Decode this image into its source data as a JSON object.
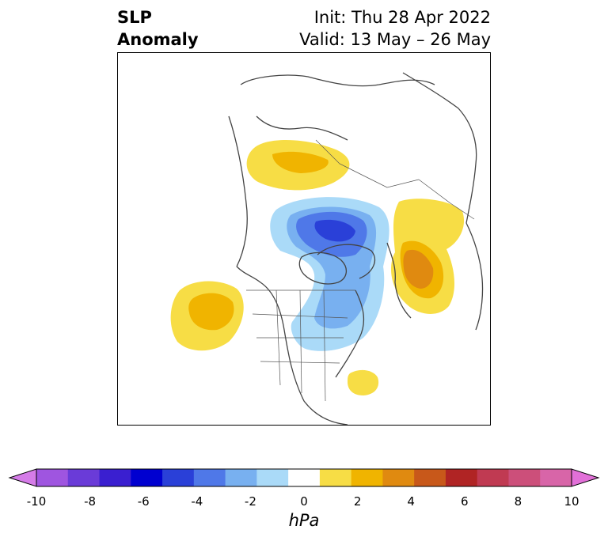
{
  "title": {
    "left_line1": "SLP",
    "left_line2": "Anomaly",
    "init": "Init: Thu 28 Apr 2022",
    "valid": "Valid: 13 May – 26 May"
  },
  "colorbar": {
    "unit": "hPa",
    "levels": [
      -10,
      -9,
      -8,
      -7,
      -6,
      -5,
      -4,
      -3,
      -2,
      -1,
      1,
      2,
      3,
      4,
      5,
      6,
      7,
      8,
      9,
      10
    ],
    "colors": [
      "#d57ce8",
      "#9f55e0",
      "#6a3bd8",
      "#3a1fd0",
      "#0000d0",
      "#2a40d8",
      "#4f78e8",
      "#78b0f0",
      "#aadaf8",
      "#ffffff",
      "#f7dd45",
      "#f0b400",
      "#e08a10",
      "#c8581a",
      "#b02424",
      "#c03a52",
      "#cc4f7a",
      "#d865a8",
      "#e270d8"
    ],
    "tick_labels": [
      "-10",
      "-8",
      "-6",
      "-4",
      "-2",
      "0",
      "2",
      "4",
      "6",
      "8",
      "10"
    ]
  },
  "map": {
    "projection": "north-polar-stereographic",
    "anomalies": [
      {
        "name": "negative-anomaly-arctic",
        "sign": "negative",
        "peak": -5
      },
      {
        "name": "positive-anomaly-siberia",
        "sign": "positive",
        "peak": 3
      },
      {
        "name": "positive-anomaly-europe",
        "sign": "positive",
        "peak": 4
      },
      {
        "name": "positive-anomaly-north-pacific",
        "sign": "positive",
        "peak": 3
      },
      {
        "name": "positive-anomaly-atlantic",
        "sign": "positive",
        "peak": 1
      }
    ]
  }
}
